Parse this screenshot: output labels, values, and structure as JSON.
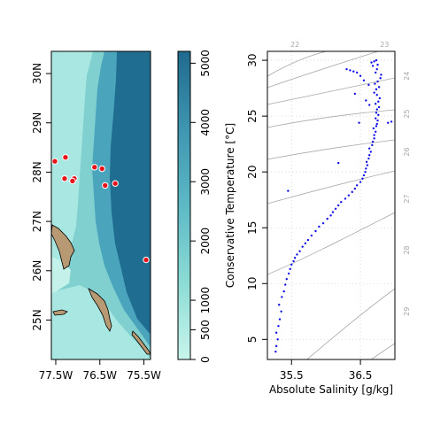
{
  "chart_data": [
    {
      "type": "heatmap",
      "panel": "bathymetry-map",
      "x_tick_labels": [
        "77.5W",
        "76.5W",
        "75.5W"
      ],
      "x_tick_values": [
        -77.5,
        -76.5,
        -75.5
      ],
      "y_tick_labels": [
        "25N",
        "26N",
        "27N",
        "28N",
        "29N",
        "30N"
      ],
      "y_tick_values": [
        25,
        26,
        27,
        28,
        29,
        30
      ],
      "xlim": [
        -77.6,
        -75.35
      ],
      "ylim": [
        24.2,
        30.45
      ],
      "colors": {
        "deep": "#1f6e91",
        "mid": "#5fb6c5",
        "shallow": "#a9e8e2",
        "land": "#b79a73",
        "station": "#e8141b"
      },
      "stations": [
        {
          "lon": -77.52,
          "lat": 28.22
        },
        {
          "lon": -77.28,
          "lat": 28.3
        },
        {
          "lon": -77.3,
          "lat": 27.87
        },
        {
          "lon": -77.08,
          "lat": 27.87
        },
        {
          "lon": -77.12,
          "lat": 27.82
        },
        {
          "lon": -76.62,
          "lat": 28.1
        },
        {
          "lon": -76.45,
          "lat": 28.07
        },
        {
          "lon": -76.38,
          "lat": 27.73
        },
        {
          "lon": -76.15,
          "lat": 27.77
        },
        {
          "lon": -75.45,
          "lat": 26.22
        }
      ]
    },
    {
      "type": "colorbar",
      "panel": "depth-colorbar",
      "tick_labels": [
        "0",
        "500",
        "1000",
        "2000",
        "3000",
        "4000",
        "5000"
      ],
      "tick_values": [
        0,
        500,
        1000,
        2000,
        3000,
        4000,
        5000
      ],
      "range": [
        0,
        5200
      ],
      "gradient_stops": [
        {
          "value": 0,
          "color": "#c8f5ec"
        },
        {
          "value": 1300,
          "color": "#8cdcd5"
        },
        {
          "value": 2600,
          "color": "#5cb9c5"
        },
        {
          "value": 3900,
          "color": "#3e95b0"
        },
        {
          "value": 5200,
          "color": "#1f6a8e"
        }
      ]
    },
    {
      "type": "scatter",
      "panel": "ts-diagram",
      "xlabel": "Absolute Salinity [g/kg]",
      "ylabel": "Conservative Temperature [°C]",
      "xlim": [
        35.15,
        37.0
      ],
      "ylim": [
        3.2,
        30.8
      ],
      "x_tick_labels": [
        "35.5",
        "36.5"
      ],
      "x_tick_values": [
        35.5,
        36.5
      ],
      "y_tick_labels": [
        "5",
        "10",
        "15",
        "20",
        "25",
        "30"
      ],
      "y_tick_values": [
        5,
        10,
        15,
        20,
        25,
        30
      ],
      "grid": true,
      "point_color": "#1010e6",
      "density_contour_labels": [
        {
          "label": "22",
          "edge": "top",
          "x": 35.55
        },
        {
          "label": "23",
          "edge": "top",
          "x": 36.85
        },
        {
          "label": "24",
          "edge": "right",
          "y": 28.6
        },
        {
          "label": "25",
          "edge": "right",
          "y": 25.2
        },
        {
          "label": "26",
          "edge": "right",
          "y": 21.8
        },
        {
          "label": "27",
          "edge": "right",
          "y": 17.6
        },
        {
          "label": "28",
          "edge": "right",
          "y": 13.0
        },
        {
          "label": "29",
          "edge": "right",
          "y": 7.5
        }
      ],
      "series": [
        {
          "x": [
            35.27,
            35.28,
            35.3,
            35.28,
            35.31,
            35.33,
            35.35,
            35.32,
            35.36,
            35.39,
            35.41,
            35.43,
            35.46,
            35.48,
            35.5,
            35.53,
            35.55,
            35.58,
            35.62,
            35.66,
            35.7,
            35.74,
            35.79,
            35.85,
            35.9,
            35.96,
            36.02,
            36.07,
            36.1,
            36.14,
            36.18,
            36.22,
            36.28,
            36.33,
            36.38,
            36.42,
            36.45,
            36.5,
            36.53,
            36.55,
            36.57,
            36.58,
            36.6,
            36.59,
            36.62,
            36.63,
            36.65,
            36.63,
            36.67,
            36.68,
            36.7,
            36.7,
            36.72,
            36.69,
            36.73,
            36.74,
            36.75,
            36.72,
            36.76,
            36.73,
            36.74,
            36.77,
            36.72,
            36.76,
            36.78,
            36.74,
            36.7,
            36.73,
            36.77,
            36.71,
            36.75,
            36.79,
            36.8,
            36.72,
            36.74,
            36.68,
            36.66,
            36.7,
            36.75,
            36.73,
            36.62,
            36.55,
            36.5,
            36.45,
            36.4,
            36.35,
            36.3,
            36.42,
            36.58,
            36.63,
            36.48,
            36.95,
            36.9,
            35.45,
            36.18
          ],
          "y": [
            3.9,
            4.4,
            5.0,
            5.6,
            6.2,
            6.8,
            7.5,
            8.1,
            8.8,
            9.3,
            9.9,
            10.4,
            10.9,
            11.3,
            11.7,
            12.0,
            12.3,
            12.6,
            12.9,
            13.3,
            13.6,
            13.9,
            14.3,
            14.7,
            15.1,
            15.4,
            15.8,
            16.1,
            16.4,
            16.7,
            17.0,
            17.3,
            17.6,
            17.9,
            18.2,
            18.5,
            18.8,
            19.1,
            19.4,
            19.7,
            20.0,
            20.3,
            20.6,
            20.9,
            21.2,
            21.5,
            21.8,
            22.1,
            22.4,
            22.7,
            23.0,
            23.3,
            23.6,
            23.9,
            24.1,
            24.3,
            24.6,
            24.8,
            25.1,
            25.3,
            25.6,
            25.8,
            26.1,
            26.3,
            26.6,
            26.9,
            27.1,
            27.4,
            27.6,
            27.9,
            28.1,
            28.4,
            28.7,
            28.9,
            29.2,
            29.5,
            29.8,
            29.9,
            29.6,
            30.0,
            27.8,
            28.2,
            28.6,
            28.9,
            29.0,
            29.1,
            29.2,
            27.0,
            26.4,
            26.0,
            24.4,
            24.5,
            24.4,
            18.3,
            20.8
          ]
        }
      ]
    }
  ]
}
